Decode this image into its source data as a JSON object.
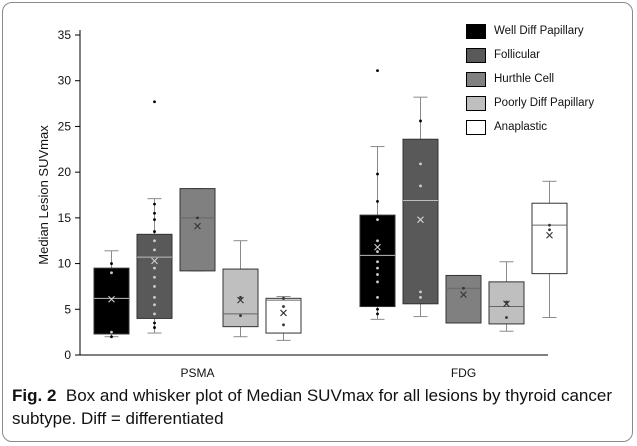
{
  "chart_data": {
    "type": "box",
    "ylabel": "Median Lesion SUVmax",
    "xlabel": "",
    "ylim": [
      0,
      35
    ],
    "yticks": [
      0,
      5,
      10,
      15,
      20,
      25,
      30,
      35
    ],
    "categories": [
      "PSMA",
      "FDG"
    ],
    "legend_position": "top-right",
    "grid": false,
    "series": [
      {
        "name": "Well Diff Papillary",
        "color": "#000000",
        "boxes": [
          {
            "category": "PSMA",
            "min": 2.0,
            "q1": 2.3,
            "median": 6.2,
            "q3": 9.5,
            "max": 11.4,
            "mean": 6.1,
            "points": [
              2.0,
              2.5,
              9.0,
              10.0
            ]
          },
          {
            "category": "FDG",
            "min": 3.9,
            "q1": 5.3,
            "median": 10.9,
            "q3": 15.3,
            "max": 22.8,
            "mean": 11.8,
            "points": [
              4.5,
              5.0,
              6.3,
              8.0,
              8.8,
              9.5,
              10.2,
              11.3,
              12.5,
              14.8,
              16.8,
              19.8,
              31.1
            ]
          }
        ]
      },
      {
        "name": "Follicular",
        "color": "#595959",
        "boxes": [
          {
            "category": "PSMA",
            "min": 2.4,
            "q1": 4.0,
            "median": 10.7,
            "q3": 13.2,
            "max": 17.1,
            "mean": 10.3,
            "points": [
              3.0,
              3.5,
              4.5,
              5.5,
              6.3,
              7.5,
              8.5,
              9.5,
              11.5,
              12.5,
              13.5,
              14.8,
              15.5,
              16.5,
              27.7
            ]
          },
          {
            "category": "FDG",
            "min": 4.2,
            "q1": 5.6,
            "median": 16.9,
            "q3": 23.6,
            "max": 28.2,
            "mean": 14.8,
            "points": [
              6.3,
              6.9,
              18.5,
              20.9,
              25.6
            ]
          }
        ]
      },
      {
        "name": "Hurthle Cell",
        "color": "#808080",
        "boxes": [
          {
            "category": "PSMA",
            "min": 9.2,
            "q1": 9.2,
            "median": 15.0,
            "q3": 18.2,
            "max": 18.2,
            "mean": 14.1,
            "points": [
              15.0
            ]
          },
          {
            "category": "FDG",
            "min": 3.5,
            "q1": 3.5,
            "median": 7.3,
            "q3": 8.7,
            "max": 8.7,
            "mean": 6.6,
            "points": [
              7.3
            ]
          }
        ]
      },
      {
        "name": "Poorly Diff Papillary",
        "color": "#bfbfbf",
        "boxes": [
          {
            "category": "PSMA",
            "min": 2.0,
            "q1": 3.1,
            "median": 4.5,
            "q3": 9.4,
            "max": 12.5,
            "mean": 6.0,
            "points": [
              4.3,
              6.3
            ]
          },
          {
            "category": "FDG",
            "min": 2.6,
            "q1": 3.4,
            "median": 5.3,
            "q3": 8.0,
            "max": 10.2,
            "mean": 5.6,
            "points": [
              4.1,
              5.8
            ]
          }
        ]
      },
      {
        "name": "Anaplastic",
        "color": "#ffffff",
        "boxes": [
          {
            "category": "PSMA",
            "min": 1.6,
            "q1": 2.4,
            "median": 6.0,
            "q3": 6.2,
            "max": 6.4,
            "mean": 4.6,
            "points": [
              3.3,
              5.3,
              6.2
            ]
          },
          {
            "category": "FDG",
            "min": 4.1,
            "q1": 8.9,
            "median": 14.2,
            "q3": 16.6,
            "max": 19.0,
            "mean": 13.1,
            "points": [
              13.7,
              14.2
            ]
          }
        ]
      }
    ]
  },
  "caption": {
    "label": "Fig. 2",
    "text": "Box and whisker plot of Median SUVmax for all lesions by thyroid cancer subtype. Diff = differentiated"
  }
}
